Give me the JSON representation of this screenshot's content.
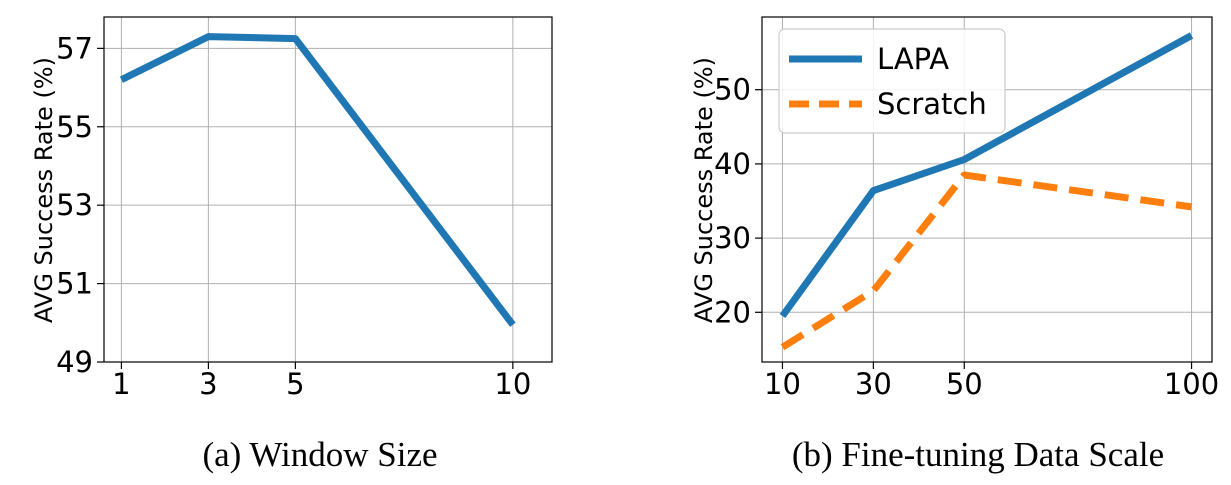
{
  "chart_data": [
    {
      "type": "line",
      "caption": "(a) Window Size",
      "ylabel": "AVG Success Rate (%)",
      "xlabel": "",
      "x": [
        1,
        3,
        5,
        10
      ],
      "xticks": [
        1,
        3,
        5,
        10
      ],
      "yticks": [
        49,
        51,
        53,
        55,
        57
      ],
      "xlim": [
        0.6,
        10.9
      ],
      "ylim": [
        49,
        57.8
      ],
      "grid": true,
      "series": [
        {
          "values": [
            56.2,
            57.3,
            57.25,
            49.95
          ],
          "color": "#1f77b4",
          "style": "solid"
        }
      ]
    },
    {
      "type": "line",
      "caption": "(b) Fine-tuning Data Scale",
      "ylabel": "AVG Success Rate (%)",
      "xlabel": "",
      "x": [
        10,
        30,
        50,
        100
      ],
      "xticks": [
        10,
        30,
        50,
        100
      ],
      "yticks": [
        20,
        30,
        40,
        50
      ],
      "xlim": [
        5.5,
        104.5
      ],
      "ylim": [
        13.3,
        59.8
      ],
      "grid": true,
      "legend_position": "top-left",
      "series": [
        {
          "name": "LAPA",
          "values": [
            19.5,
            36.4,
            40.6,
            57.3
          ],
          "color": "#1f77b4",
          "style": "solid"
        },
        {
          "name": "Scratch",
          "values": [
            15.3,
            22.9,
            38.5,
            34.2
          ],
          "color": "#ff7f0e",
          "style": "dashed"
        }
      ]
    }
  ]
}
